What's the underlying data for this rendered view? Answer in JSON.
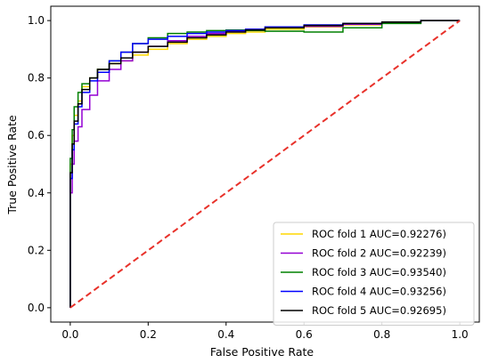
{
  "chart_data": {
    "type": "line",
    "title": "",
    "xlabel": "False Positive Rate",
    "ylabel": "True Positive Rate",
    "xlim": [
      -0.05,
      1.05
    ],
    "ylim": [
      -0.05,
      1.05
    ],
    "xticks": [
      0.0,
      0.2,
      0.4,
      0.6,
      0.8,
      1.0
    ],
    "yticks": [
      0.0,
      0.2,
      0.4,
      0.6,
      0.8,
      1.0
    ],
    "xtick_labels": [
      "0.0",
      "0.2",
      "0.4",
      "0.6",
      "0.8",
      "1.0"
    ],
    "ytick_labels": [
      "0.0",
      "0.2",
      "0.4",
      "0.6",
      "0.8",
      "1.0"
    ],
    "grid": false,
    "legend_position": "lower-right",
    "series": [
      {
        "name": "ROC fold 1 AUC=0.92276)",
        "color": "#FFD700",
        "x": [
          0,
          0,
          0.005,
          0.01,
          0.02,
          0.03,
          0.05,
          0.07,
          0.1,
          0.13,
          0.16,
          0.2,
          0.25,
          0.3,
          0.35,
          0.4,
          0.45,
          0.5,
          0.6,
          0.7,
          0.8,
          0.9,
          1.0
        ],
        "y": [
          0,
          0.3,
          0.5,
          0.6,
          0.67,
          0.72,
          0.77,
          0.8,
          0.83,
          0.85,
          0.86,
          0.88,
          0.9,
          0.92,
          0.935,
          0.945,
          0.955,
          0.96,
          0.97,
          0.978,
          0.985,
          0.993,
          1.0
        ]
      },
      {
        "name": "ROC fold 2 AUC=0.92239)",
        "color": "#9400D3",
        "x": [
          0,
          0,
          0.005,
          0.01,
          0.02,
          0.03,
          0.05,
          0.07,
          0.1,
          0.13,
          0.16,
          0.2,
          0.25,
          0.3,
          0.35,
          0.4,
          0.45,
          0.5,
          0.6,
          0.7,
          0.8,
          0.9,
          1.0
        ],
        "y": [
          0,
          0.15,
          0.4,
          0.5,
          0.58,
          0.63,
          0.69,
          0.74,
          0.79,
          0.83,
          0.86,
          0.89,
          0.91,
          0.93,
          0.945,
          0.955,
          0.963,
          0.97,
          0.975,
          0.98,
          0.987,
          0.993,
          1.0
        ]
      },
      {
        "name": "ROC fold 3 AUC=0.93540)",
        "color": "#008000",
        "x": [
          0,
          0,
          0.005,
          0.01,
          0.02,
          0.03,
          0.05,
          0.07,
          0.1,
          0.13,
          0.16,
          0.2,
          0.25,
          0.3,
          0.35,
          0.4,
          0.45,
          0.5,
          0.6,
          0.7,
          0.8,
          0.9,
          1.0
        ],
        "y": [
          0,
          0.35,
          0.52,
          0.62,
          0.7,
          0.75,
          0.78,
          0.8,
          0.83,
          0.86,
          0.89,
          0.92,
          0.94,
          0.955,
          0.96,
          0.965,
          0.967,
          0.965,
          0.963,
          0.96,
          0.975,
          0.99,
          1.0
        ]
      },
      {
        "name": "ROC fold 4 AUC=0.93256)",
        "color": "#0000FF",
        "x": [
          0,
          0,
          0.005,
          0.01,
          0.02,
          0.03,
          0.05,
          0.07,
          0.1,
          0.13,
          0.16,
          0.2,
          0.25,
          0.3,
          0.35,
          0.4,
          0.45,
          0.5,
          0.6,
          0.7,
          0.8,
          0.9,
          1.0
        ],
        "y": [
          0,
          0.25,
          0.45,
          0.55,
          0.64,
          0.7,
          0.75,
          0.79,
          0.82,
          0.86,
          0.89,
          0.92,
          0.935,
          0.945,
          0.955,
          0.96,
          0.965,
          0.97,
          0.978,
          0.985,
          0.99,
          0.995,
          1.0
        ]
      },
      {
        "name": "ROC fold 5 AUC=0.92695)",
        "color": "#000000",
        "x": [
          0,
          0,
          0.005,
          0.01,
          0.02,
          0.03,
          0.05,
          0.07,
          0.1,
          0.13,
          0.16,
          0.2,
          0.25,
          0.3,
          0.35,
          0.4,
          0.45,
          0.5,
          0.6,
          0.7,
          0.8,
          0.9,
          1.0
        ],
        "y": [
          0,
          0.3,
          0.47,
          0.57,
          0.65,
          0.71,
          0.76,
          0.8,
          0.83,
          0.85,
          0.87,
          0.89,
          0.91,
          0.925,
          0.94,
          0.95,
          0.96,
          0.967,
          0.975,
          0.983,
          0.99,
          0.995,
          1.0
        ]
      }
    ],
    "reference_line": {
      "x": [
        0,
        1
      ],
      "y": [
        0,
        1
      ],
      "color": "#E8312A",
      "style": "dashed"
    }
  }
}
